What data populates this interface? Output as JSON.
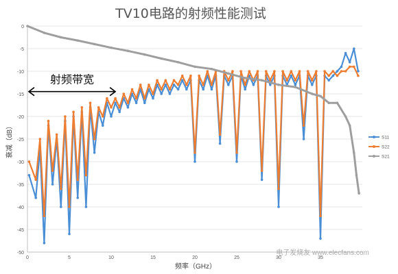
{
  "chart_data": {
    "type": "line",
    "title": "TV10电路的射频性能测试",
    "xlabel": "频率（GHz）",
    "ylabel": "衰减（dB）",
    "xlim": [
      0,
      40
    ],
    "ylim": [
      -50,
      0
    ],
    "x_ticks": [
      "0",
      "5",
      "10",
      "15",
      "20",
      "25",
      "30",
      "35"
    ],
    "x_tick_values": [
      0,
      5,
      10,
      15,
      20,
      25,
      30,
      35
    ],
    "y_ticks": [
      "0",
      "-5",
      "-10",
      "-15",
      "-20",
      "-25",
      "-30",
      "-35",
      "-40",
      "-45",
      "-50"
    ],
    "y_tick_values": [
      0,
      -5,
      -10,
      -15,
      -20,
      -25,
      -30,
      -35,
      -40,
      -45,
      -50
    ],
    "grid": "horizontal",
    "legend_position": "right",
    "annotation": {
      "text": "射频带宽",
      "x_start": 0,
      "x_end": 10.5
    },
    "watermark": "电子发烧友 www.elecfans.com",
    "series": [
      {
        "name": "S11",
        "color": "#4a8fd6",
        "x": [
          0.2,
          1,
          1.5,
          2,
          2.5,
          3,
          3.5,
          4,
          4.5,
          5,
          5.5,
          6,
          6.5,
          7,
          7.5,
          8,
          8.5,
          9,
          9.5,
          10,
          10.5,
          11,
          11.5,
          12,
          12.5,
          13,
          13.5,
          14,
          14.5,
          15,
          15.5,
          16,
          16.5,
          17,
          17.5,
          18,
          18.5,
          19,
          19.5,
          20,
          20.5,
          21,
          21.5,
          22,
          22.5,
          23,
          23.5,
          24,
          24.5,
          25,
          25.5,
          26,
          26.5,
          27,
          27.5,
          28,
          28.5,
          29,
          29.5,
          30,
          30.5,
          31,
          31.5,
          32,
          32.5,
          33,
          33.5,
          34,
          34.5,
          35,
          35.5,
          36,
          36.5,
          37,
          37.5,
          38,
          38.5,
          39,
          39.5
        ],
        "values": [
          -33,
          -38,
          -27,
          -48,
          -22,
          -35,
          -25,
          -40,
          -21,
          -46,
          -20,
          -38,
          -19,
          -40,
          -18,
          -28,
          -19,
          -22,
          -17,
          -20,
          -17,
          -19,
          -16,
          -18,
          -15,
          -17,
          -14,
          -17,
          -14,
          -16,
          -13,
          -15,
          -13,
          -15,
          -13,
          -14,
          -12,
          -14,
          -12,
          -30,
          -12,
          -14,
          -11,
          -14,
          -11,
          -26,
          -11,
          -13,
          -11,
          -30,
          -11,
          -14,
          -11,
          -13,
          -11,
          -34,
          -11,
          -13,
          -11,
          -40,
          -11,
          -13,
          -11,
          -13,
          -11,
          -25,
          -11,
          -13,
          -11,
          -47,
          -11,
          -12,
          -11,
          -10,
          -9,
          -6,
          -8,
          -5,
          -10
        ]
      },
      {
        "name": "S22",
        "color": "#ed7d31",
        "x": [
          0.2,
          1,
          1.5,
          2,
          2.5,
          3,
          3.5,
          4,
          4.5,
          5,
          5.5,
          6,
          6.5,
          7,
          7.5,
          8,
          8.5,
          9,
          9.5,
          10,
          10.5,
          11,
          11.5,
          12,
          12.5,
          13,
          13.5,
          14,
          14.5,
          15,
          15.5,
          16,
          16.5,
          17,
          17.5,
          18,
          18.5,
          19,
          19.5,
          20,
          20.5,
          21,
          21.5,
          22,
          22.5,
          23,
          23.5,
          24,
          24.5,
          25,
          25.5,
          26,
          26.5,
          27,
          27.5,
          28,
          28.5,
          29,
          29.5,
          30,
          30.5,
          31,
          31.5,
          32,
          32.5,
          33,
          33.5,
          34,
          34.5,
          35,
          35.5,
          36,
          36.5,
          37,
          37.5,
          38,
          38.5,
          39,
          39.5
        ],
        "values": [
          -30,
          -34,
          -25,
          -42,
          -21,
          -32,
          -24,
          -36,
          -20,
          -40,
          -19,
          -34,
          -18,
          -33,
          -17,
          -25,
          -18,
          -20,
          -16,
          -18,
          -16,
          -18,
          -15,
          -17,
          -14,
          -16,
          -13,
          -16,
          -13,
          -15,
          -12,
          -14,
          -12,
          -14,
          -12,
          -13,
          -11,
          -13,
          -11,
          -28,
          -11,
          -13,
          -10,
          -13,
          -10,
          -24,
          -10,
          -12,
          -10,
          -28,
          -10,
          -13,
          -10,
          -12,
          -10,
          -32,
          -10,
          -12,
          -10,
          -36,
          -10,
          -12,
          -10,
          -12,
          -10,
          -22,
          -10,
          -12,
          -10,
          -42,
          -10,
          -11,
          -10,
          -11,
          -10,
          -10,
          -9,
          -9,
          -11
        ]
      },
      {
        "name": "S21",
        "color": "#9e9e9e",
        "x": [
          0,
          2,
          4,
          6,
          8,
          10,
          12,
          14,
          16,
          18,
          20,
          22,
          24,
          26,
          28,
          30,
          32,
          34,
          35,
          36,
          37,
          38,
          38.5,
          39,
          39.3,
          39.6
        ],
        "values": [
          0,
          -1.5,
          -2.5,
          -3.2,
          -4,
          -4.8,
          -5.5,
          -6.3,
          -7.2,
          -8,
          -9,
          -9.5,
          -10.5,
          -11.5,
          -12,
          -13,
          -13.5,
          -15,
          -15.5,
          -17,
          -17,
          -20,
          -22,
          -28,
          -33,
          -37
        ]
      }
    ]
  }
}
